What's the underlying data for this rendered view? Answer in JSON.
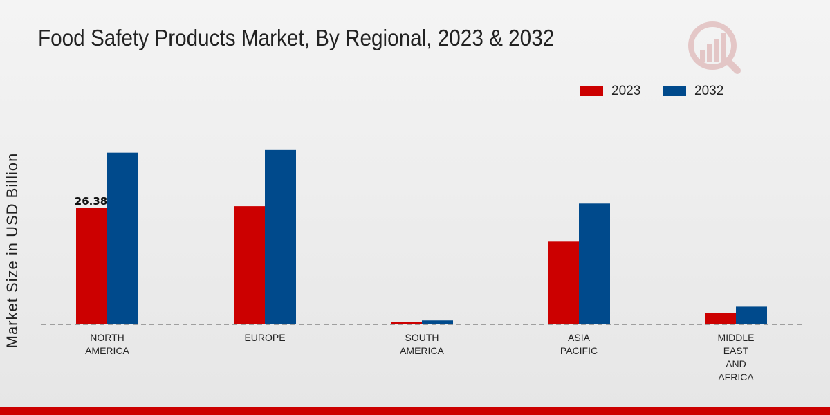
{
  "title": "Food Safety Products Market, By Regional, 2023 & 2032",
  "logo_icon": "market-research-logo-icon",
  "colors": {
    "series_2023": "#cc0000",
    "series_2032": "#004a8c",
    "accent_bar": "#cc0000"
  },
  "legend": [
    {
      "label": "2023",
      "color": "#cc0000"
    },
    {
      "label": "2032",
      "color": "#004a8c"
    }
  ],
  "chart_data": {
    "type": "bar",
    "title": "Food Safety Products Market, By Regional, 2023 & 2032",
    "xlabel": "",
    "ylabel": "Market Size in USD Billion",
    "categories": [
      [
        "NORTH",
        "AMERICA"
      ],
      [
        "EUROPE"
      ],
      [
        "SOUTH",
        "AMERICA"
      ],
      [
        "ASIA",
        "PACIFIC"
      ],
      [
        "MIDDLE",
        "EAST",
        "AND",
        "AFRICA"
      ]
    ],
    "series": [
      {
        "name": "2023",
        "color": "#cc0000",
        "values": [
          26.38,
          26.7,
          0.6,
          18.7,
          2.5
        ]
      },
      {
        "name": "2032",
        "color": "#004a8c",
        "values": [
          38.8,
          39.4,
          0.9,
          27.3,
          4.0
        ]
      }
    ],
    "data_labels": [
      {
        "series": 0,
        "index": 0,
        "text": "26.38"
      }
    ],
    "ylim": [
      0,
      60
    ],
    "grid": false,
    "legend_position": "top-right"
  }
}
